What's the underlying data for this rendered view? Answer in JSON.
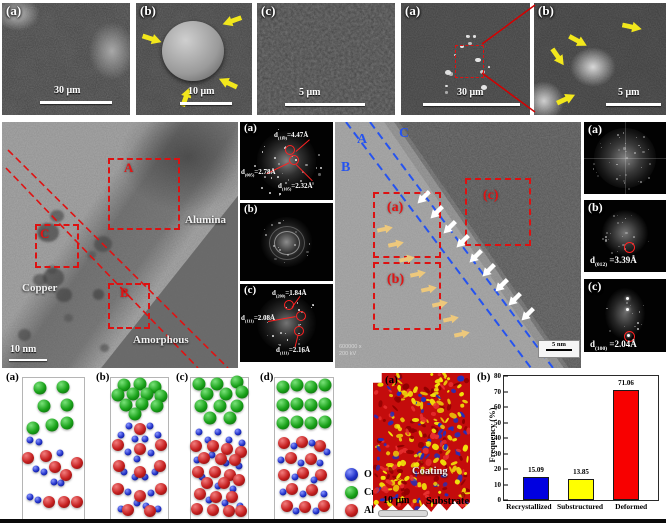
{
  "sem_panels": [
    {
      "label": "(a)",
      "scale": "30 μm"
    },
    {
      "label": "(b)",
      "scale": "10 μm"
    },
    {
      "label": "(c)",
      "scale": "5 μm"
    },
    {
      "label": "(a)",
      "scale": "30 μm"
    },
    {
      "label": "(b)",
      "scale": "5 μm"
    }
  ],
  "tem_left": {
    "boxes": [
      {
        "label": "A"
      },
      {
        "label": "B"
      },
      {
        "label": "C"
      }
    ],
    "phase_labels": {
      "alumina": "Alumina",
      "copper": "Copper",
      "amorphous": "Amorphous"
    },
    "scale_label": "10 nm"
  },
  "fft_left": {
    "panels": [
      {
        "label": "(a)",
        "ann": [
          {
            "p": "d",
            "s": "(110)",
            "v": "=4.47Å"
          },
          {
            "p": "d",
            "s": "(005)",
            "v": "=2.78Å"
          },
          {
            "p": "d",
            "s": "(105)",
            "v": "=2.32Å"
          }
        ]
      },
      {
        "label": "(b)"
      },
      {
        "label": "(c)",
        "ann": [
          {
            "p": "d",
            "s": "(200)",
            "v": "=1.84Å"
          },
          {
            "p": "d",
            "s": "(111)",
            "v": "=2.08Å"
          },
          {
            "p": "d",
            "s": "(111)",
            "v": "=2.16Å"
          }
        ]
      }
    ]
  },
  "tem_right": {
    "zones": [
      {
        "label": "A"
      },
      {
        "label": "B"
      },
      {
        "label": "C"
      }
    ],
    "boxes": [
      {
        "label": "(a)"
      },
      {
        "label": "(b)"
      },
      {
        "label": "(c)"
      }
    ],
    "scale_label": "5 nm",
    "meta": [
      "600000 x",
      "200 kV"
    ]
  },
  "fft_right": {
    "panels": [
      {
        "label": "(a)"
      },
      {
        "label": "(b)",
        "ann": {
          "p": "d",
          "s": "(012)",
          "v": "=3.39Å"
        }
      },
      {
        "label": "(c)",
        "ann": {
          "p": "d",
          "s": "(100)",
          "v": "=2.04Å"
        }
      }
    ]
  },
  "models": {
    "panels": [
      {
        "label": "(a)",
        "atoms": [
          [
            "Cu",
            28,
            7
          ],
          [
            "Cu",
            66,
            6
          ],
          [
            "Cu",
            34,
            20
          ],
          [
            "Cu",
            72,
            19
          ],
          [
            "Cu",
            16,
            35
          ],
          [
            "Cu",
            48,
            33
          ],
          [
            "Cu",
            72,
            32
          ],
          [
            "O",
            12,
            44
          ],
          [
            "O",
            26,
            45
          ],
          [
            "O",
            60,
            53
          ],
          [
            "O",
            22,
            64
          ],
          [
            "O",
            34,
            66
          ],
          [
            "O",
            50,
            73
          ],
          [
            "O",
            62,
            74
          ],
          [
            "O",
            12,
            84
          ],
          [
            "O",
            24,
            86
          ],
          [
            "Al",
            8,
            56
          ],
          [
            "Al",
            38,
            55
          ],
          [
            "Al",
            52,
            63
          ],
          [
            "Al",
            70,
            68
          ],
          [
            "Al",
            88,
            60
          ],
          [
            "Al",
            42,
            87
          ],
          [
            "Al",
            68,
            87
          ],
          [
            "Al",
            88,
            87
          ]
        ]
      },
      {
        "label": "(b)",
        "atoms": [
          [
            "Cu",
            22,
            5
          ],
          [
            "Cu",
            50,
            4
          ],
          [
            "Cu",
            78,
            6
          ],
          [
            "Cu",
            12,
            12
          ],
          [
            "Cu",
            38,
            11
          ],
          [
            "Cu",
            64,
            11
          ],
          [
            "Cu",
            88,
            13
          ],
          [
            "Cu",
            26,
            19
          ],
          [
            "Cu",
            55,
            18
          ],
          [
            "Cu",
            80,
            20
          ],
          [
            "Cu",
            42,
            25
          ],
          [
            "O",
            32,
            34
          ],
          [
            "O",
            68,
            34
          ],
          [
            "O",
            18,
            40
          ],
          [
            "O",
            82,
            40
          ],
          [
            "O",
            42,
            43
          ],
          [
            "O",
            60,
            43
          ],
          [
            "O",
            30,
            52
          ],
          [
            "O",
            70,
            53
          ],
          [
            "O",
            46,
            57
          ],
          [
            "O",
            22,
            66
          ],
          [
            "O",
            78,
            66
          ],
          [
            "O",
            42,
            70
          ],
          [
            "O",
            60,
            70
          ],
          [
            "O",
            30,
            80
          ],
          [
            "O",
            70,
            81
          ],
          [
            "O",
            46,
            88
          ],
          [
            "O",
            62,
            90
          ],
          [
            "O",
            18,
            92
          ],
          [
            "O",
            82,
            92
          ],
          [
            "Al",
            50,
            36
          ],
          [
            "Al",
            12,
            47
          ],
          [
            "Al",
            88,
            47
          ],
          [
            "Al",
            50,
            50
          ],
          [
            "Al",
            14,
            62
          ],
          [
            "Al",
            86,
            62
          ],
          [
            "Al",
            50,
            66
          ],
          [
            "Al",
            12,
            78
          ],
          [
            "Al",
            88,
            78
          ],
          [
            "Al",
            50,
            83
          ],
          [
            "Al",
            30,
            93
          ],
          [
            "Al",
            68,
            94
          ]
        ]
      },
      {
        "label": "(c)",
        "atoms": [
          [
            "Cu",
            14,
            4
          ],
          [
            "Cu",
            46,
            4
          ],
          [
            "Cu",
            80,
            3
          ],
          [
            "Cu",
            28,
            11
          ],
          [
            "Cu",
            62,
            11
          ],
          [
            "Cu",
            90,
            10
          ],
          [
            "Cu",
            18,
            20
          ],
          [
            "Cu",
            50,
            20
          ],
          [
            "Cu",
            80,
            20
          ],
          [
            "Cu",
            34,
            28
          ],
          [
            "Cu",
            68,
            28
          ],
          [
            "O",
            14,
            38
          ],
          [
            "O",
            48,
            38
          ],
          [
            "O",
            82,
            38
          ],
          [
            "O",
            30,
            44
          ],
          [
            "O",
            66,
            44
          ],
          [
            "O",
            90,
            46
          ],
          [
            "O",
            36,
            54
          ],
          [
            "O",
            10,
            58
          ],
          [
            "O",
            62,
            60
          ],
          [
            "O",
            84,
            62
          ],
          [
            "O",
            20,
            70
          ],
          [
            "O",
            48,
            76
          ],
          [
            "O",
            74,
            78
          ],
          [
            "O",
            32,
            86
          ],
          [
            "O",
            60,
            88
          ],
          [
            "O",
            86,
            90
          ],
          [
            "Al",
            8,
            48
          ],
          [
            "Al",
            38,
            48
          ],
          [
            "Al",
            64,
            50
          ],
          [
            "Al",
            88,
            52
          ],
          [
            "Al",
            22,
            56
          ],
          [
            "Al",
            52,
            57
          ],
          [
            "Al",
            78,
            58
          ],
          [
            "Al",
            12,
            66
          ],
          [
            "Al",
            42,
            66
          ],
          [
            "Al",
            68,
            68
          ],
          [
            "Al",
            28,
            74
          ],
          [
            "Al",
            58,
            74
          ],
          [
            "Al",
            84,
            72
          ],
          [
            "Al",
            16,
            82
          ],
          [
            "Al",
            44,
            84
          ],
          [
            "Al",
            72,
            84
          ],
          [
            "Al",
            10,
            92
          ],
          [
            "Al",
            38,
            93
          ],
          [
            "Al",
            66,
            94
          ],
          [
            "Al",
            88,
            94
          ]
        ]
      },
      {
        "label": "(d)",
        "atoms": [
          [
            "Cu",
            14,
            6
          ],
          [
            "Cu",
            38,
            5
          ],
          [
            "Cu",
            62,
            6
          ],
          [
            "Cu",
            86,
            5
          ],
          [
            "Cu",
            14,
            19
          ],
          [
            "Cu",
            38,
            18
          ],
          [
            "Cu",
            62,
            19
          ],
          [
            "Cu",
            86,
            18
          ],
          [
            "Cu",
            14,
            32
          ],
          [
            "Cu",
            38,
            31
          ],
          [
            "Cu",
            62,
            32
          ],
          [
            "Cu",
            86,
            31
          ],
          [
            "Al",
            16,
            46
          ],
          [
            "Al",
            46,
            45
          ],
          [
            "Al",
            78,
            48
          ],
          [
            "Al",
            28,
            56
          ],
          [
            "Al",
            62,
            57
          ],
          [
            "Al",
            16,
            68
          ],
          [
            "Al",
            48,
            67
          ],
          [
            "Al",
            80,
            68
          ],
          [
            "Al",
            30,
            78
          ],
          [
            "Al",
            64,
            79
          ],
          [
            "Al",
            20,
            90
          ],
          [
            "Al",
            52,
            91
          ],
          [
            "Al",
            84,
            90
          ],
          [
            "O",
            32,
            48
          ],
          [
            "O",
            64,
            46
          ],
          [
            "O",
            90,
            52
          ],
          [
            "O",
            44,
            60
          ],
          [
            "O",
            78,
            60
          ],
          [
            "O",
            10,
            58
          ],
          [
            "O",
            34,
            70
          ],
          [
            "O",
            68,
            72
          ],
          [
            "O",
            14,
            80
          ],
          [
            "O",
            48,
            82
          ],
          [
            "O",
            84,
            82
          ],
          [
            "O",
            36,
            94
          ],
          [
            "O",
            70,
            94
          ]
        ]
      }
    ],
    "legend": [
      {
        "element": "O",
        "color": "#2030c8"
      },
      {
        "element": "Cu",
        "color": "#18a018"
      },
      {
        "element": "Al",
        "color": "#c51f1f"
      }
    ]
  },
  "ebsd": {
    "label": "(a)",
    "coating_label": "Coating",
    "substrate_label": "Substrate",
    "scale_label": "10 μm"
  },
  "chart_data": {
    "type": "bar",
    "label": "(b)",
    "title": "",
    "categories": [
      "Recrystallized",
      "Substructured",
      "Deformed"
    ],
    "values": [
      15.09,
      13.85,
      71.06
    ],
    "value_labels": [
      "15.09",
      "13.85",
      "71.06"
    ],
    "colors": [
      "#0000e0",
      "#ffff00",
      "#f80000"
    ],
    "xlabel": "",
    "ylabel": "Frequency (%)",
    "ylim": [
      0,
      80
    ],
    "yticks": [
      0,
      10,
      20,
      30,
      40,
      50,
      60,
      70,
      80
    ],
    "legend_position": "none",
    "grid": false
  }
}
